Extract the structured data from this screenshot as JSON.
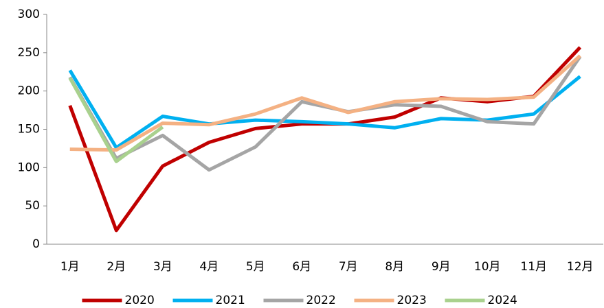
{
  "chart_data": {
    "type": "line",
    "categories": [
      "1月",
      "2月",
      "3月",
      "4月",
      "5月",
      "6月",
      "7月",
      "8月",
      "9月",
      "10月",
      "11月",
      "12月"
    ],
    "series": [
      {
        "name": "2020",
        "color": "#c00000",
        "values": [
          181,
          18,
          102,
          133,
          151,
          157,
          157,
          166,
          191,
          186,
          193,
          257
        ]
      },
      {
        "name": "2021",
        "color": "#00b0f0",
        "values": [
          227,
          126,
          167,
          157,
          162,
          160,
          157,
          152,
          164,
          162,
          170,
          219
        ]
      },
      {
        "name": "2022",
        "color": "#a5a5a5",
        "values": [
          218,
          112,
          142,
          97,
          127,
          186,
          173,
          182,
          180,
          160,
          157,
          245
        ]
      },
      {
        "name": "2023",
        "color": "#f4b183",
        "values": [
          124,
          123,
          158,
          156,
          170,
          191,
          172,
          186,
          190,
          189,
          192,
          246
        ]
      },
      {
        "name": "2024",
        "color": "#a9d18e",
        "values": [
          217,
          108,
          153,
          null,
          null,
          null,
          null,
          null,
          null,
          null,
          null,
          null
        ]
      }
    ],
    "ylim": [
      0,
      300
    ],
    "yticks": [
      0,
      50,
      100,
      150,
      200,
      250,
      300
    ],
    "grid": false,
    "legend": "bottom"
  }
}
